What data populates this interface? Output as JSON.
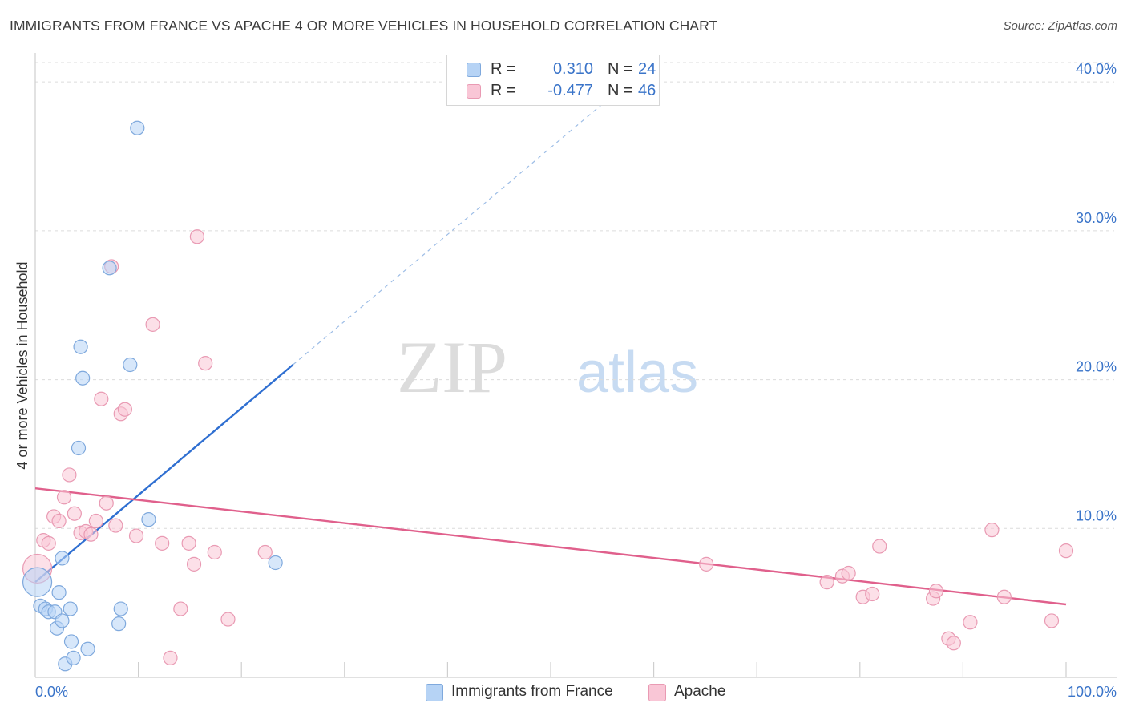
{
  "header": {
    "title": "IMMIGRANTS FROM FRANCE VS APACHE 4 OR MORE VEHICLES IN HOUSEHOLD CORRELATION CHART",
    "source": "Source: ZipAtlas.com"
  },
  "legend": {
    "rows": [
      {
        "r_label": "R =",
        "r_value": "0.310",
        "n_label": "N =",
        "n_value": "24"
      },
      {
        "r_label": "R =",
        "r_value": "-0.477",
        "n_label": "N =",
        "n_value": "46"
      }
    ]
  },
  "watermark": {
    "zip": "ZIP",
    "atlas": "atlas"
  },
  "colors": {
    "blue_fill": "#b6d3f5",
    "blue_stroke": "#7fa9dd",
    "blue_line": "#2f6fd1",
    "pink_fill": "#f9c6d6",
    "pink_stroke": "#e99ab3",
    "pink_line": "#e0608c",
    "tick_label": "#3a74c9",
    "grid": "#dcdcdc"
  },
  "chart_data": {
    "type": "scatter",
    "title": "IMMIGRANTS FROM FRANCE VS APACHE 4 OR MORE VEHICLES IN HOUSEHOLD CORRELATION CHART",
    "xlabel": "",
    "ylabel": "4 or more Vehicles in Household",
    "xlim": [
      0,
      100
    ],
    "ylim": [
      0,
      41.3
    ],
    "x_tick_labels": [
      {
        "value": 0,
        "label": "0.0%"
      },
      {
        "value": 100,
        "label": "100.0%"
      }
    ],
    "y_ticks": [
      {
        "value": 10,
        "label": "10.0%"
      },
      {
        "value": 20,
        "label": "20.0%"
      },
      {
        "value": 30,
        "label": "30.0%"
      },
      {
        "value": 40,
        "label": "40.0%"
      }
    ],
    "x_minor_ticks": [
      10,
      20,
      30,
      40,
      50,
      60,
      70,
      80,
      90,
      100
    ],
    "series": [
      {
        "name": "Immigrants from France",
        "color": "blue",
        "r": 0.31,
        "n": 24,
        "trend": {
          "x0": 0,
          "y0": 6.4,
          "x1": 25,
          "y1": 21.0,
          "dash_x1": 55,
          "dash_y1": 38.5
        },
        "points": [
          {
            "x": 0.2,
            "y": 6.4,
            "size": "large"
          },
          {
            "x": 0.5,
            "y": 4.8
          },
          {
            "x": 1.0,
            "y": 4.6
          },
          {
            "x": 1.3,
            "y": 4.4
          },
          {
            "x": 1.9,
            "y": 4.4
          },
          {
            "x": 2.1,
            "y": 3.3
          },
          {
            "x": 2.3,
            "y": 5.7
          },
          {
            "x": 2.6,
            "y": 8.0
          },
          {
            "x": 2.9,
            "y": 0.9
          },
          {
            "x": 3.4,
            "y": 4.6
          },
          {
            "x": 3.5,
            "y": 2.4
          },
          {
            "x": 3.7,
            "y": 1.3
          },
          {
            "x": 4.2,
            "y": 15.4
          },
          {
            "x": 4.4,
            "y": 22.2
          },
          {
            "x": 4.6,
            "y": 20.1
          },
          {
            "x": 5.1,
            "y": 1.9
          },
          {
            "x": 7.2,
            "y": 27.5
          },
          {
            "x": 8.1,
            "y": 3.6
          },
          {
            "x": 8.3,
            "y": 4.6
          },
          {
            "x": 9.2,
            "y": 21.0
          },
          {
            "x": 9.9,
            "y": 36.9
          },
          {
            "x": 11.0,
            "y": 10.6
          },
          {
            "x": 23.3,
            "y": 7.7
          },
          {
            "x": 2.6,
            "y": 3.8
          }
        ]
      },
      {
        "name": "Apache",
        "color": "pink",
        "r": -0.477,
        "n": 46,
        "trend": {
          "x0": 0,
          "y0": 12.7,
          "x1": 100,
          "y1": 4.9
        },
        "points": [
          {
            "x": 0.2,
            "y": 7.3,
            "size": "large"
          },
          {
            "x": 0.8,
            "y": 9.2
          },
          {
            "x": 1.3,
            "y": 9.0
          },
          {
            "x": 1.8,
            "y": 10.8
          },
          {
            "x": 2.3,
            "y": 10.5
          },
          {
            "x": 2.8,
            "y": 12.1
          },
          {
            "x": 3.3,
            "y": 13.6
          },
          {
            "x": 3.8,
            "y": 11.0
          },
          {
            "x": 4.4,
            "y": 9.7
          },
          {
            "x": 4.9,
            "y": 9.8
          },
          {
            "x": 5.4,
            "y": 9.6
          },
          {
            "x": 5.9,
            "y": 10.5
          },
          {
            "x": 6.4,
            "y": 18.7
          },
          {
            "x": 6.9,
            "y": 11.7
          },
          {
            "x": 7.4,
            "y": 27.6
          },
          {
            "x": 7.8,
            "y": 10.2
          },
          {
            "x": 8.3,
            "y": 17.7
          },
          {
            "x": 8.7,
            "y": 18.0
          },
          {
            "x": 9.8,
            "y": 9.5
          },
          {
            "x": 11.4,
            "y": 23.7
          },
          {
            "x": 12.3,
            "y": 9.0
          },
          {
            "x": 13.1,
            "y": 1.3
          },
          {
            "x": 14.1,
            "y": 4.6
          },
          {
            "x": 14.9,
            "y": 9.0
          },
          {
            "x": 15.4,
            "y": 7.6
          },
          {
            "x": 15.7,
            "y": 29.6
          },
          {
            "x": 16.5,
            "y": 21.1
          },
          {
            "x": 17.4,
            "y": 8.4
          },
          {
            "x": 18.7,
            "y": 3.9
          },
          {
            "x": 22.3,
            "y": 8.4
          },
          {
            "x": 65.1,
            "y": 7.6
          },
          {
            "x": 76.8,
            "y": 6.4
          },
          {
            "x": 78.3,
            "y": 6.8
          },
          {
            "x": 78.9,
            "y": 7.0
          },
          {
            "x": 80.3,
            "y": 5.4
          },
          {
            "x": 81.2,
            "y": 5.6
          },
          {
            "x": 81.9,
            "y": 8.8
          },
          {
            "x": 87.1,
            "y": 5.3
          },
          {
            "x": 87.4,
            "y": 5.8
          },
          {
            "x": 88.6,
            "y": 2.6
          },
          {
            "x": 89.1,
            "y": 2.3
          },
          {
            "x": 90.7,
            "y": 3.7
          },
          {
            "x": 92.8,
            "y": 9.9
          },
          {
            "x": 94.0,
            "y": 5.4
          },
          {
            "x": 98.6,
            "y": 3.8
          },
          {
            "x": 100.0,
            "y": 8.5
          }
        ]
      }
    ]
  },
  "bottom_legend": {
    "items": [
      {
        "label": "Immigrants from France"
      },
      {
        "label": "Apache"
      }
    ]
  }
}
